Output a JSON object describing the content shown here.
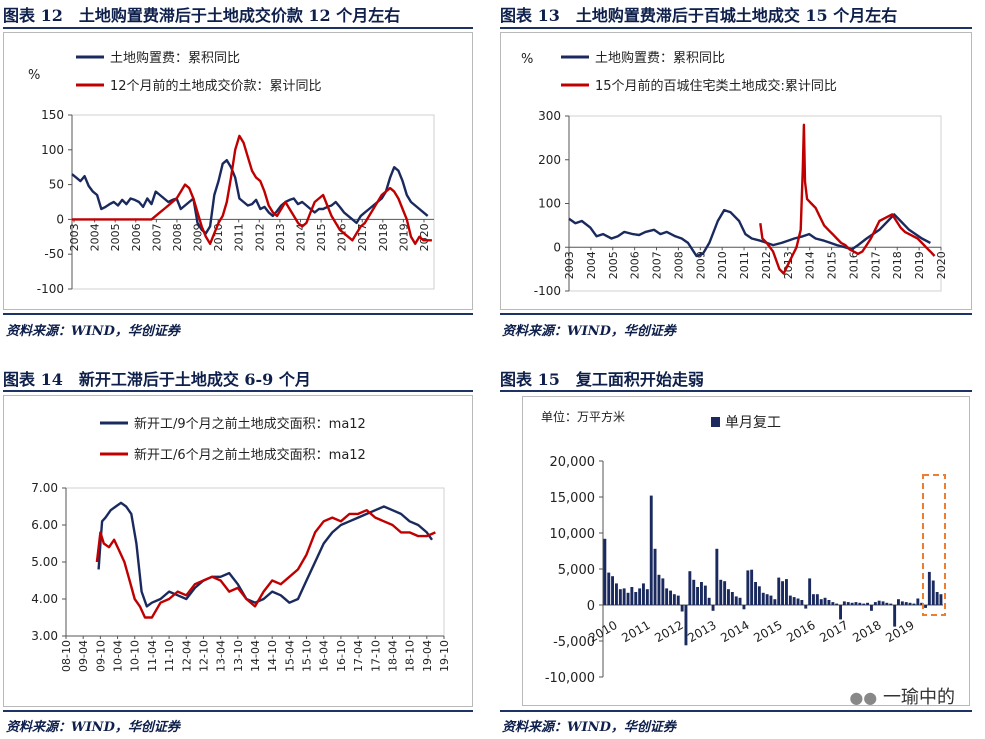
{
  "charts": [
    {
      "title": "图表 12　土地购置费滞后于土地成交价款 12 个月左右",
      "source": "资料来源：WIND，华创证券",
      "unit": "%",
      "legend": [
        "土地购置费：累积同比",
        "12个月前的土地成交价款：累计同比"
      ],
      "y_ticks": [
        "150",
        "100",
        "50",
        "0",
        "-50",
        "-100"
      ],
      "x_ticks": [
        "2003",
        "2004",
        "2005",
        "2006",
        "2007",
        "2008",
        "2009",
        "2010",
        "2011",
        "2012",
        "2013",
        "2014",
        "2015",
        "2016",
        "2017",
        "2018",
        "2019",
        "2020"
      ]
    },
    {
      "title": "图表 13　土地购置费滞后于百城土地成交 15 个月左右",
      "source": "资料来源：WIND，华创证券",
      "unit": "%",
      "legend": [
        "土地购置费：累积同比",
        "15个月前的百城住宅类土地成交:累计同比"
      ],
      "y_ticks": [
        "300",
        "200",
        "100",
        "0",
        "-100"
      ],
      "x_ticks": [
        "2003",
        "2004",
        "2005",
        "2006",
        "2007",
        "2008",
        "2009",
        "2010",
        "2011",
        "2012",
        "2013",
        "2014",
        "2015",
        "2016",
        "2017",
        "2018",
        "2019",
        "2020"
      ]
    },
    {
      "title": "图表 14　新开工滞后于土地成交 6-9 个月",
      "source": "资料来源：WIND，华创证券",
      "legend": [
        "新开工/9个月之前土地成交面积：ma12",
        "新开工/6个月之前土地成交面积：ma12"
      ],
      "y_ticks": [
        "7.00",
        "6.00",
        "5.00",
        "4.00",
        "3.00"
      ],
      "x_ticks": [
        "08-10",
        "09-04",
        "09-10",
        "10-04",
        "10-10",
        "11-04",
        "11-10",
        "12-04",
        "12-10",
        "13-04",
        "13-10",
        "14-04",
        "14-10",
        "15-04",
        "15-10",
        "16-04",
        "16-10",
        "17-04",
        "17-10",
        "18-04",
        "18-10",
        "19-04",
        "19-10"
      ]
    },
    {
      "title": "图表 15　复工面积开始走弱",
      "unit": "单位：万平方米",
      "legend": [
        "单月复工"
      ],
      "y_ticks": [
        "20,000",
        "15,000",
        "10,000",
        "5,000",
        "0",
        "-5,000",
        "-10,000"
      ],
      "x_ticks": [
        "2010",
        "2011",
        "2012",
        "2013",
        "2014",
        "2015",
        "2016",
        "2017",
        "2018",
        "2019"
      ]
    }
  ],
  "watermark": "一瑜中的",
  "colors": {
    "navy": "#1a2a5e",
    "red": "#c00000",
    "orange": "#ed7d31",
    "title": "#0d1f4a"
  },
  "chart_data": [
    {
      "type": "line",
      "xlim": [
        2003,
        2020.3
      ],
      "ylim": [
        -100,
        150
      ],
      "series": [
        {
          "name": "土地购置费：累积同比",
          "x": [
            2003.0,
            2003.2,
            2003.4,
            2003.6,
            2003.8,
            2004.0,
            2004.2,
            2004.4,
            2004.6,
            2004.8,
            2005.0,
            2005.2,
            2005.4,
            2005.6,
            2005.8,
            2006.0,
            2006.2,
            2006.4,
            2006.6,
            2006.8,
            2007.0,
            2007.2,
            2007.4,
            2007.6,
            2007.8,
            2008.0,
            2008.2,
            2008.4,
            2008.6,
            2008.8,
            2009.0,
            2009.2,
            2009.4,
            2009.6,
            2009.8,
            2010.0,
            2010.2,
            2010.4,
            2010.6,
            2010.8,
            2011.0,
            2011.2,
            2011.4,
            2011.6,
            2011.8,
            2012.0,
            2012.2,
            2012.4,
            2012.6,
            2012.8,
            2013.0,
            2013.2,
            2013.4,
            2013.6,
            2013.8,
            2014.0,
            2014.2,
            2014.4,
            2014.6,
            2014.8,
            2015.0,
            2015.2,
            2015.4,
            2015.6,
            2015.8,
            2016.0,
            2016.2,
            2016.4,
            2016.6,
            2016.8,
            2017.0,
            2017.2,
            2017.4,
            2017.6,
            2017.8,
            2018.0,
            2018.2,
            2018.4,
            2018.6,
            2018.8,
            2019.0,
            2019.2,
            2019.4,
            2019.6,
            2019.8,
            2020.0
          ],
          "values": [
            65,
            60,
            55,
            62,
            48,
            40,
            35,
            15,
            18,
            22,
            25,
            20,
            28,
            22,
            30,
            28,
            25,
            18,
            30,
            22,
            40,
            35,
            30,
            25,
            28,
            30,
            15,
            20,
            25,
            30,
            -5,
            -15,
            -20,
            -10,
            35,
            55,
            80,
            85,
            75,
            60,
            30,
            25,
            20,
            22,
            28,
            15,
            18,
            10,
            5,
            12,
            20,
            25,
            28,
            30,
            22,
            25,
            20,
            15,
            10,
            15,
            15,
            18,
            20,
            25,
            18,
            10,
            5,
            0,
            -5,
            5,
            10,
            15,
            20,
            25,
            30,
            40,
            60,
            75,
            70,
            55,
            35,
            25,
            20,
            15,
            10,
            5
          ]
        },
        {
          "name": "12个月前的土地成交价款：累计同比",
          "x": [
            2003.0,
            2004.0,
            2005.0,
            2006.0,
            2006.5,
            2006.8,
            2007.0,
            2007.2,
            2007.4,
            2007.6,
            2007.8,
            2008.0,
            2008.2,
            2008.4,
            2008.6,
            2008.8,
            2009.0,
            2009.2,
            2009.4,
            2009.6,
            2009.8,
            2010.0,
            2010.2,
            2010.4,
            2010.6,
            2010.8,
            2011.0,
            2011.2,
            2011.4,
            2011.6,
            2011.8,
            2012.0,
            2012.2,
            2012.4,
            2012.6,
            2012.8,
            2013.0,
            2013.2,
            2013.4,
            2013.6,
            2013.8,
            2014.0,
            2014.2,
            2014.4,
            2014.6,
            2014.8,
            2015.0,
            2015.2,
            2015.4,
            2015.6,
            2015.8,
            2016.0,
            2016.2,
            2016.4,
            2016.6,
            2016.8,
            2017.0,
            2017.2,
            2017.4,
            2017.6,
            2017.8,
            2018.0,
            2018.2,
            2018.4,
            2018.6,
            2018.8,
            2019.0,
            2019.2,
            2019.4,
            2019.6,
            2019.8,
            2020.0,
            2020.2
          ],
          "values": [
            0,
            0,
            0,
            0,
            0,
            0,
            5,
            10,
            15,
            20,
            25,
            30,
            40,
            50,
            45,
            30,
            10,
            -10,
            -25,
            -35,
            -20,
            -5,
            5,
            25,
            60,
            100,
            120,
            110,
            90,
            70,
            60,
            55,
            40,
            20,
            10,
            5,
            15,
            25,
            15,
            5,
            -5,
            -10,
            -5,
            10,
            25,
            30,
            35,
            20,
            5,
            -5,
            -15,
            -20,
            -25,
            -30,
            -20,
            -10,
            -5,
            5,
            15,
            25,
            35,
            40,
            45,
            40,
            30,
            15,
            0,
            -25,
            -35,
            -25,
            -30,
            -30,
            -30
          ]
        }
      ]
    },
    {
      "type": "line",
      "xlim": [
        2003,
        2020.5
      ],
      "ylim": [
        -100,
        300
      ],
      "series": [
        {
          "name": "土地购置费：累积同比",
          "x": [
            2003.0,
            2003.3,
            2003.6,
            2004.0,
            2004.3,
            2004.6,
            2005.0,
            2005.3,
            2005.6,
            2006.0,
            2006.3,
            2006.6,
            2007.0,
            2007.3,
            2007.6,
            2008.0,
            2008.3,
            2008.6,
            2009.0,
            2009.3,
            2009.6,
            2010.0,
            2010.3,
            2010.6,
            2011.0,
            2011.3,
            2011.6,
            2012.0,
            2012.3,
            2012.6,
            2013.0,
            2013.3,
            2013.6,
            2014.0,
            2014.3,
            2014.6,
            2015.0,
            2015.3,
            2015.6,
            2016.0,
            2016.3,
            2016.6,
            2017.0,
            2017.3,
            2017.6,
            2018.0,
            2018.3,
            2018.6,
            2019.0,
            2019.3,
            2019.6,
            2020.0
          ],
          "values": [
            65,
            55,
            60,
            45,
            25,
            30,
            20,
            25,
            35,
            30,
            28,
            35,
            40,
            30,
            35,
            25,
            20,
            10,
            -20,
            -15,
            10,
            60,
            85,
            80,
            60,
            30,
            20,
            15,
            10,
            5,
            10,
            15,
            20,
            25,
            30,
            20,
            15,
            10,
            5,
            0,
            -5,
            5,
            20,
            30,
            40,
            60,
            75,
            60,
            40,
            30,
            20,
            10
          ]
        },
        {
          "name": "15个月前的百城住宅类土地成交:累计同比",
          "x": [
            2012.0,
            2012.1,
            2012.3,
            2012.6,
            2012.9,
            2013.1,
            2013.3,
            2013.5,
            2013.7,
            2013.9,
            2014.0,
            2014.05,
            2014.1,
            2014.2,
            2014.4,
            2014.6,
            2014.8,
            2015.0,
            2015.2,
            2015.4,
            2015.6,
            2015.8,
            2016.0,
            2016.2,
            2016.4,
            2016.6,
            2016.8,
            2017.0,
            2017.2,
            2017.4,
            2017.6,
            2017.8,
            2018.0,
            2018.2,
            2018.4,
            2018.6,
            2018.8,
            2019.0,
            2019.2,
            2019.4,
            2019.6,
            2019.8,
            2020.0,
            2020.2
          ],
          "values": [
            55,
            20,
            10,
            -10,
            -50,
            -60,
            -40,
            -20,
            0,
            40,
            180,
            280,
            150,
            110,
            100,
            90,
            70,
            50,
            40,
            30,
            20,
            10,
            5,
            -5,
            -10,
            -15,
            -10,
            5,
            20,
            40,
            60,
            65,
            70,
            75,
            60,
            45,
            35,
            30,
            25,
            20,
            10,
            0,
            -10,
            -20
          ]
        }
      ]
    },
    {
      "type": "line",
      "xlim": [
        0,
        22
      ],
      "ylim": [
        3,
        7
      ],
      "categories": [
        "08-10",
        "09-04",
        "09-10",
        "10-04",
        "10-10",
        "11-04",
        "11-10",
        "12-04",
        "12-10",
        "13-04",
        "13-10",
        "14-04",
        "14-10",
        "15-04",
        "15-10",
        "16-04",
        "16-10",
        "17-04",
        "17-10",
        "18-04",
        "18-10",
        "19-04",
        "19-10"
      ],
      "series": [
        {
          "name": "新开工/9个月之前土地成交面积：ma12",
          "x": [
            1.9,
            2.0,
            2.1,
            2.3,
            2.6,
            2.9,
            3.2,
            3.5,
            3.8,
            4.1,
            4.4,
            4.7,
            5.0,
            5.5,
            6.0,
            6.5,
            7.0,
            7.5,
            8.0,
            8.5,
            9.0,
            9.5,
            10.0,
            10.5,
            11.0,
            11.5,
            12.0,
            12.5,
            13.0,
            13.5,
            14.0,
            14.5,
            15.0,
            15.5,
            16.0,
            16.5,
            17.0,
            17.5,
            18.0,
            18.5,
            19.0,
            19.5,
            20.0,
            20.5,
            21.0,
            21.3
          ],
          "values": [
            4.8,
            5.5,
            6.1,
            6.2,
            6.4,
            6.5,
            6.6,
            6.5,
            6.3,
            5.5,
            4.2,
            3.8,
            3.9,
            4.0,
            4.2,
            4.1,
            4.0,
            4.3,
            4.5,
            4.6,
            4.6,
            4.7,
            4.4,
            4.0,
            3.9,
            4.0,
            4.2,
            4.1,
            3.9,
            4.0,
            4.5,
            5.0,
            5.5,
            5.8,
            6.0,
            6.1,
            6.2,
            6.3,
            6.4,
            6.5,
            6.4,
            6.3,
            6.1,
            6.0,
            5.8,
            5.6
          ]
        },
        {
          "name": "新开工/6个月之前土地成交面积：ma12",
          "x": [
            1.8,
            2.0,
            2.2,
            2.5,
            2.8,
            3.1,
            3.4,
            3.7,
            4.0,
            4.3,
            4.6,
            5.0,
            5.5,
            6.0,
            6.5,
            7.0,
            7.5,
            8.0,
            8.5,
            9.0,
            9.5,
            10.0,
            10.5,
            11.0,
            11.5,
            12.0,
            12.5,
            13.0,
            13.5,
            14.0,
            14.5,
            15.0,
            15.5,
            16.0,
            16.5,
            17.0,
            17.5,
            18.0,
            18.5,
            19.0,
            19.5,
            20.0,
            20.5,
            21.0,
            21.5
          ],
          "values": [
            5.0,
            5.8,
            5.5,
            5.4,
            5.6,
            5.3,
            5.0,
            4.5,
            4.0,
            3.8,
            3.5,
            3.5,
            3.9,
            4.0,
            4.2,
            4.1,
            4.4,
            4.5,
            4.6,
            4.5,
            4.2,
            4.3,
            4.0,
            3.8,
            4.2,
            4.5,
            4.4,
            4.6,
            4.8,
            5.2,
            5.8,
            6.1,
            6.2,
            6.1,
            6.3,
            6.3,
            6.4,
            6.2,
            6.1,
            6.0,
            5.8,
            5.8,
            5.7,
            5.7,
            5.8
          ]
        }
      ]
    },
    {
      "type": "bar",
      "ylim": [
        -10000,
        20000
      ],
      "series": [
        {
          "name": "单月复工",
          "values": [
            9200,
            4500,
            4000,
            3000,
            2200,
            2300,
            1700,
            2500,
            1800,
            2300,
            3000,
            2200,
            15200,
            7800,
            4200,
            3700,
            2300,
            2000,
            1500,
            1300,
            -900,
            -5600,
            4700,
            3500,
            2500,
            3200,
            2700,
            1000,
            -800,
            7800,
            3500,
            3300,
            2200,
            1800,
            1200,
            1000,
            -600,
            4800,
            4900,
            3200,
            2600,
            1700,
            1500,
            1300,
            800,
            3800,
            3300,
            3600,
            1300,
            1100,
            900,
            700,
            -500,
            3700,
            1500,
            1500,
            800,
            1000,
            700,
            400,
            200,
            -2000,
            500,
            400,
            300,
            400,
            300,
            200,
            300,
            -800,
            400,
            600,
            500,
            300,
            200,
            -3000,
            800,
            500,
            400,
            300,
            200,
            900,
            300,
            -400,
            4600,
            3400,
            1800,
            1500
          ]
        }
      ]
    }
  ]
}
